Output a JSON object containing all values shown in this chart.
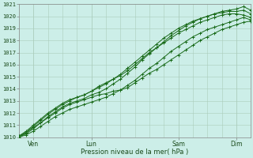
{
  "title": "",
  "xlabel": "Pression niveau de la mer( hPa )",
  "ylim": [
    1010,
    1021
  ],
  "xlim": [
    0,
    96
  ],
  "yticks": [
    1010,
    1011,
    1012,
    1013,
    1014,
    1015,
    1016,
    1017,
    1018,
    1019,
    1020,
    1021
  ],
  "xtick_positions": [
    6,
    30,
    66,
    90
  ],
  "xtick_labels": [
    "Ven",
    "Lun",
    "Sam",
    "Dim"
  ],
  "bg_color": "#cceee8",
  "grid_color_major": "#aaccbb",
  "grid_color_minor": "#bbddcc",
  "line_color": "#1a6b1a",
  "series": [
    [
      1010.1,
      1010.4,
      1010.8,
      1011.2,
      1011.6,
      1012.0,
      1012.4,
      1012.7,
      1012.9,
      1013.1,
      1013.3,
      1013.5,
      1013.6,
      1013.8,
      1013.9,
      1014.1,
      1014.5,
      1014.9,
      1015.3,
      1015.6,
      1016.0,
      1016.4,
      1016.8,
      1017.2,
      1017.6,
      1018.0,
      1018.3,
      1018.6,
      1018.9,
      1019.1,
      1019.3,
      1019.5,
      1019.6
    ],
    [
      1010.1,
      1010.5,
      1011.0,
      1011.5,
      1012.0,
      1012.4,
      1012.8,
      1013.1,
      1013.3,
      1013.5,
      1013.8,
      1014.2,
      1014.5,
      1014.8,
      1015.1,
      1015.5,
      1016.0,
      1016.5,
      1017.0,
      1017.4,
      1017.8,
      1018.2,
      1018.6,
      1018.9,
      1019.2,
      1019.5,
      1019.7,
      1019.9,
      1020.1,
      1020.2,
      1020.2,
      1020.1,
      1019.9
    ],
    [
      1010.0,
      1010.4,
      1010.9,
      1011.4,
      1011.9,
      1012.3,
      1012.7,
      1013.0,
      1013.3,
      1013.5,
      1013.8,
      1014.1,
      1014.4,
      1014.8,
      1015.2,
      1015.7,
      1016.2,
      1016.7,
      1017.2,
      1017.7,
      1018.2,
      1018.6,
      1019.0,
      1019.3,
      1019.6,
      1019.8,
      1020.0,
      1020.2,
      1020.3,
      1020.4,
      1020.4,
      1020.5,
      1020.2
    ],
    [
      1010.0,
      1010.3,
      1010.7,
      1011.2,
      1011.7,
      1012.1,
      1012.5,
      1012.8,
      1013.0,
      1013.2,
      1013.5,
      1013.7,
      1014.0,
      1014.4,
      1014.8,
      1015.3,
      1015.8,
      1016.4,
      1016.9,
      1017.4,
      1017.9,
      1018.4,
      1018.8,
      1019.2,
      1019.5,
      1019.8,
      1020.0,
      1020.2,
      1020.4,
      1020.5,
      1020.6,
      1020.8,
      1020.5
    ],
    [
      1010.0,
      1010.2,
      1010.5,
      1010.9,
      1011.3,
      1011.7,
      1012.0,
      1012.3,
      1012.5,
      1012.7,
      1012.9,
      1013.1,
      1013.3,
      1013.6,
      1013.9,
      1014.3,
      1014.7,
      1015.2,
      1015.7,
      1016.1,
      1016.6,
      1017.1,
      1017.5,
      1017.9,
      1018.3,
      1018.6,
      1018.9,
      1019.1,
      1019.3,
      1019.5,
      1019.7,
      1019.9,
      1019.7
    ]
  ]
}
